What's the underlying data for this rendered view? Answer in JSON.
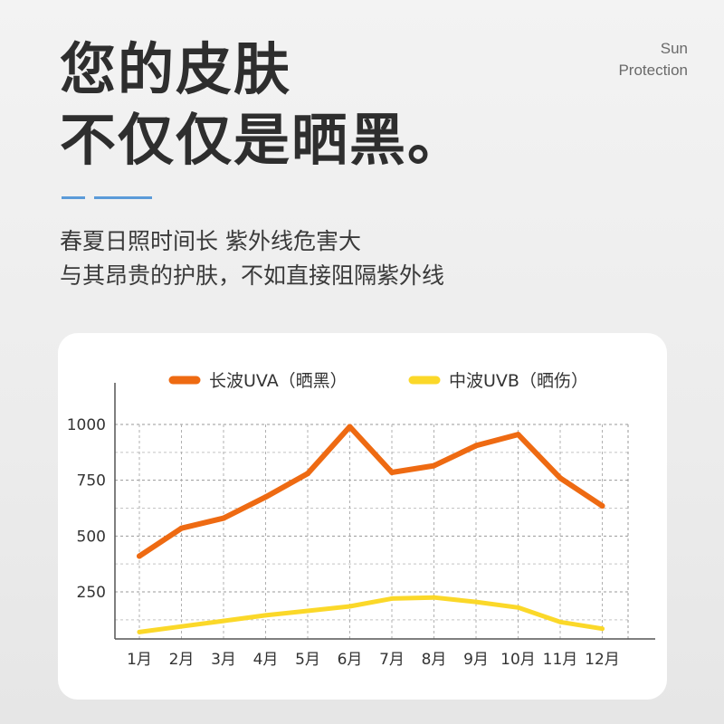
{
  "headline": {
    "line1": "您的皮肤",
    "line2": "不仅仅是晒黑。"
  },
  "corner_tag": {
    "line1": "Sun",
    "line2": "Protection"
  },
  "subtitle": {
    "line1": "春夏日照时间长 紫外线危害大",
    "line2": "与其昂贵的护肤，不如直接阻隔紫外线"
  },
  "colors": {
    "uva": "#ee6a12",
    "uvb": "#fbd829",
    "accent": "#5b9bd9"
  },
  "chart_data": {
    "type": "line",
    "title": "",
    "xlabel": "",
    "ylabel": "",
    "categories": [
      "1月",
      "2月",
      "3月",
      "4月",
      "5月",
      "6月",
      "7月",
      "8月",
      "9月",
      "10月",
      "11月",
      "12月"
    ],
    "yticks": [
      250,
      500,
      750,
      1000
    ],
    "ylim": [
      0,
      1000
    ],
    "grid": true,
    "legend": "top",
    "series": [
      {
        "name": "长波UVA（晒黑）",
        "color": "#ee6a12",
        "values": [
          410,
          535,
          580,
          675,
          780,
          990,
          785,
          815,
          905,
          955,
          760,
          635
        ]
      },
      {
        "name": "中波UVB（晒伤）",
        "color": "#fbd829",
        "values": [
          70,
          95,
          120,
          145,
          165,
          185,
          220,
          225,
          205,
          180,
          115,
          85
        ]
      }
    ]
  }
}
